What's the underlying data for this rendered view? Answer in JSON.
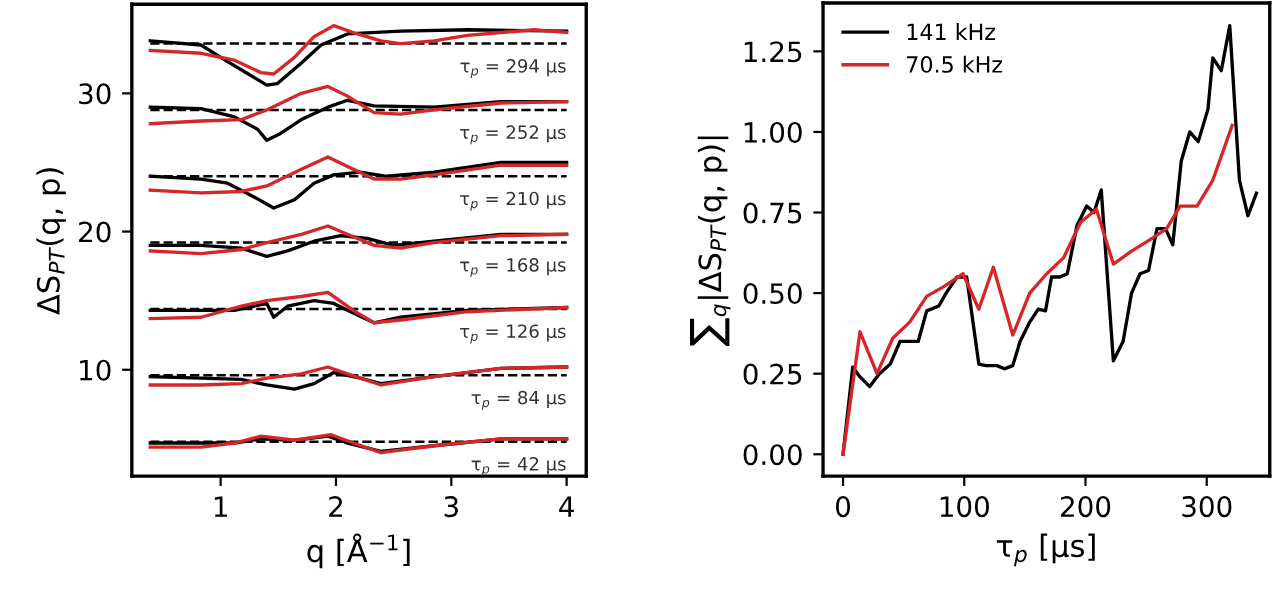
{
  "chart_data": [
    {
      "type": "line",
      "xlabel": "q [Å$^{−1}$]",
      "ylabel": "ΔS$_{PT}$(q, p)",
      "xlim": [
        0.23,
        4.17
      ],
      "ylim": [
        2.3,
        36.45
      ],
      "xticks": [
        1,
        2,
        3,
        4
      ],
      "yticks": [
        10,
        20,
        30
      ],
      "grid": false,
      "legend": false,
      "tick_labels": "xy",
      "series": [
        {
          "color": "#000000",
          "x": [
            0.39,
            0.83,
            1.0,
            1.24,
            1.4,
            1.49,
            1.7,
            1.87,
            2.1,
            2.56,
            3.14,
            4.0
          ],
          "values": [
            33.8,
            33.5,
            32.6,
            31.4,
            30.6,
            30.7,
            32.2,
            33.5,
            34.3,
            34.5,
            34.6,
            34.5
          ]
        },
        {
          "color": "#d62728",
          "x": [
            0.39,
            0.83,
            1.12,
            1.35,
            1.46,
            1.64,
            1.81,
            1.98,
            2.15,
            2.39,
            2.56,
            2.85,
            3.14,
            3.72,
            4.0
          ],
          "values": [
            33.1,
            32.9,
            32.4,
            31.5,
            31.4,
            32.6,
            34.1,
            34.9,
            34.4,
            33.8,
            33.6,
            33.8,
            34.2,
            34.6,
            34.4
          ]
        },
        {
          "color": "#000000",
          "x": [
            0.39,
            0.83,
            1.12,
            1.32,
            1.4,
            1.52,
            1.7,
            1.93,
            2.1,
            2.33,
            2.85,
            3.43,
            4.0
          ],
          "values": [
            29.0,
            28.9,
            28.3,
            27.4,
            26.6,
            27.1,
            28.1,
            29.0,
            29.5,
            29.1,
            29.0,
            29.4,
            29.4
          ]
        },
        {
          "color": "#d62728",
          "x": [
            0.39,
            0.83,
            1.18,
            1.4,
            1.7,
            1.93,
            2.1,
            2.33,
            2.56,
            2.85,
            3.43,
            4.0
          ],
          "values": [
            27.8,
            28.0,
            28.1,
            28.8,
            30.0,
            30.5,
            29.8,
            28.6,
            28.5,
            28.8,
            29.3,
            29.4
          ]
        },
        {
          "color": "#000000",
          "x": [
            0.39,
            0.83,
            1.06,
            1.29,
            1.46,
            1.64,
            1.81,
            1.98,
            2.21,
            2.44,
            2.85,
            3.43,
            4.0
          ],
          "values": [
            24.0,
            23.8,
            23.5,
            22.5,
            21.7,
            22.3,
            23.5,
            24.1,
            24.3,
            24.0,
            24.3,
            25.0,
            25.0
          ]
        },
        {
          "color": "#d62728",
          "x": [
            0.39,
            0.83,
            1.18,
            1.4,
            1.7,
            1.93,
            2.1,
            2.33,
            2.56,
            2.85,
            3.43,
            4.0
          ],
          "values": [
            23.0,
            22.8,
            22.9,
            23.3,
            24.5,
            25.4,
            24.7,
            23.8,
            23.8,
            24.1,
            24.8,
            24.8
          ]
        },
        {
          "color": "#000000",
          "x": [
            0.39,
            0.83,
            1.18,
            1.4,
            1.58,
            1.81,
            2.04,
            2.27,
            2.5,
            2.85,
            3.43,
            4.0
          ],
          "values": [
            19.0,
            19.0,
            18.8,
            18.2,
            18.6,
            19.3,
            19.7,
            19.5,
            19.0,
            19.3,
            19.8,
            19.8
          ]
        },
        {
          "color": "#d62728",
          "x": [
            0.39,
            0.83,
            1.18,
            1.4,
            1.7,
            1.93,
            2.1,
            2.33,
            2.56,
            2.85,
            3.43,
            4.0
          ],
          "values": [
            18.6,
            18.4,
            18.7,
            19.2,
            19.8,
            20.4,
            19.8,
            19.0,
            18.8,
            19.2,
            19.7,
            19.8
          ]
        },
        {
          "color": "#000000",
          "x": [
            0.39,
            0.83,
            1.12,
            1.4,
            1.46,
            1.58,
            1.81,
            1.98,
            2.15,
            2.33,
            2.56,
            3.14,
            4.0
          ],
          "values": [
            14.3,
            14.3,
            14.3,
            14.8,
            13.8,
            14.6,
            15.0,
            14.8,
            14.1,
            13.4,
            13.8,
            14.3,
            14.5
          ]
        },
        {
          "color": "#d62728",
          "x": [
            0.39,
            0.83,
            1.18,
            1.4,
            1.7,
            1.93,
            2.15,
            2.33,
            2.56,
            3.14,
            4.0
          ],
          "values": [
            13.7,
            13.8,
            14.6,
            15.0,
            15.3,
            15.6,
            14.3,
            13.4,
            13.6,
            14.2,
            14.5
          ]
        },
        {
          "color": "#000000",
          "x": [
            0.39,
            0.83,
            1.18,
            1.4,
            1.64,
            1.81,
            1.98,
            2.21,
            2.39,
            2.85,
            3.43,
            4.0
          ],
          "values": [
            9.5,
            9.4,
            9.3,
            8.9,
            8.6,
            9.0,
            9.8,
            9.4,
            9.0,
            9.5,
            10.1,
            10.2
          ]
        },
        {
          "color": "#d62728",
          "x": [
            0.39,
            0.83,
            1.18,
            1.4,
            1.7,
            1.93,
            2.1,
            2.39,
            2.85,
            3.43,
            4.0
          ],
          "values": [
            8.9,
            8.9,
            9.0,
            9.4,
            9.7,
            10.2,
            9.7,
            8.9,
            9.5,
            10.1,
            10.2
          ]
        },
        {
          "color": "#000000",
          "x": [
            0.39,
            0.83,
            1.12,
            1.35,
            1.64,
            1.93,
            2.1,
            2.39,
            2.85,
            3.43,
            4.0
          ],
          "values": [
            4.7,
            4.7,
            4.7,
            5.0,
            4.9,
            5.2,
            4.7,
            4.1,
            4.5,
            5.0,
            5.0
          ]
        },
        {
          "color": "#d62728",
          "x": [
            0.39,
            0.83,
            1.12,
            1.35,
            1.64,
            1.96,
            2.15,
            2.39,
            2.85,
            3.43,
            4.0
          ],
          "values": [
            4.4,
            4.4,
            4.7,
            5.2,
            4.9,
            5.3,
            4.7,
            4.0,
            4.5,
            5.0,
            5.0
          ]
        }
      ],
      "ref_lines": [
        {
          "axis": "y",
          "value": 33.6,
          "color": "#000000",
          "line_style": "dashed"
        },
        {
          "axis": "y",
          "value": 28.8,
          "color": "#000000",
          "line_style": "dashed"
        },
        {
          "axis": "y",
          "value": 24.0,
          "color": "#000000",
          "line_style": "dashed"
        },
        {
          "axis": "y",
          "value": 19.2,
          "color": "#000000",
          "line_style": "dashed"
        },
        {
          "axis": "y",
          "value": 14.4,
          "color": "#000000",
          "line_style": "dashed"
        },
        {
          "axis": "y",
          "value": 9.6,
          "color": "#000000",
          "line_style": "dashed"
        },
        {
          "axis": "y",
          "value": 4.8,
          "color": "#000000",
          "line_style": "dashed"
        }
      ],
      "annotations": [
        "τ$_{p}$ = 294 μs",
        "τ$_{p}$ = 252 μs",
        "τ$_{p}$ = 210 μs",
        "τ$_{p}$ = 168 μs",
        "τ$_{p}$ = 126 μs",
        "τ$_{p}$ = 84 μs",
        "τ$_{p}$ = 42 μs"
      ]
    },
    {
      "type": "line",
      "xlabel": "τ$_{p}$ [μs]",
      "ylabel": "∑$_{q}$|ΔS$_{PT}$(q, p)|",
      "xlim": [
        -16.5,
        352
      ],
      "ylim": [
        -0.068,
        1.4
      ],
      "xticks": [
        0,
        100,
        200,
        300
      ],
      "yticks": [
        {
          "value": 0,
          "label": "0.00"
        },
        {
          "value": 0.25,
          "label": "0.25"
        },
        {
          "value": 0.5,
          "label": "0.50"
        },
        {
          "value": 0.75,
          "label": "0.75"
        },
        {
          "value": 1,
          "label": "1.00"
        },
        {
          "value": 1.25,
          "label": "1.25"
        }
      ],
      "grid": false,
      "legend": "top left",
      "series": [
        {
          "name": "141 kHz",
          "color": "#000000",
          "x": [
            0,
            8,
            14,
            22,
            30,
            39,
            47,
            55,
            62,
            69,
            79,
            85,
            94,
            102,
            112,
            118,
            127,
            133,
            140,
            146,
            154,
            161,
            167,
            172,
            179,
            185,
            193,
            201,
            207,
            213,
            223,
            231,
            238,
            245,
            252,
            259,
            266,
            272,
            279,
            286,
            293,
            301,
            305,
            312,
            319,
            327,
            334,
            341
          ],
          "values": [
            0.0,
            0.27,
            0.24,
            0.21,
            0.25,
            0.28,
            0.35,
            0.35,
            0.35,
            0.445,
            0.46,
            0.5,
            0.55,
            0.55,
            0.28,
            0.275,
            0.275,
            0.265,
            0.275,
            0.35,
            0.41,
            0.45,
            0.445,
            0.55,
            0.55,
            0.56,
            0.71,
            0.77,
            0.75,
            0.82,
            0.29,
            0.35,
            0.5,
            0.56,
            0.57,
            0.7,
            0.7,
            0.65,
            0.91,
            1.0,
            0.97,
            1.07,
            1.23,
            1.19,
            1.33,
            0.85,
            0.74,
            0.81
          ]
        },
        {
          "name": "70.5 kHz",
          "color": "#d62728",
          "x": [
            0,
            14,
            28,
            41,
            55,
            69,
            83,
            99,
            112,
            124,
            140,
            154,
            168,
            182,
            196,
            209,
            223,
            238,
            253,
            267,
            278,
            292,
            305,
            321
          ],
          "values": [
            0.0,
            0.38,
            0.25,
            0.36,
            0.41,
            0.49,
            0.52,
            0.56,
            0.45,
            0.58,
            0.37,
            0.5,
            0.56,
            0.61,
            0.72,
            0.76,
            0.59,
            0.63,
            0.665,
            0.7,
            0.77,
            0.77,
            0.85,
            1.02
          ]
        }
      ]
    }
  ]
}
